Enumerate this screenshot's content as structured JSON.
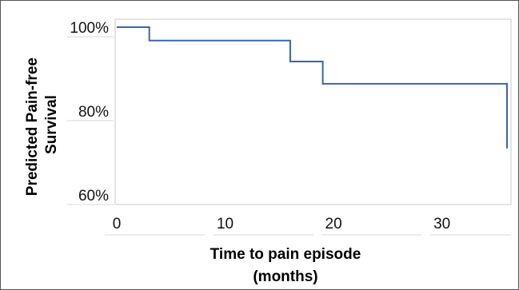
{
  "chart_data": {
    "type": "line",
    "step": true,
    "title": "",
    "xlabel_lines": [
      "Time to pain episode",
      "(months)"
    ],
    "ylabel_lines": [
      "Predicted Pain-free",
      "Survival"
    ],
    "xlim": [
      0,
      36
    ],
    "ylim": [
      0.6,
      1.0
    ],
    "x_ticks": [
      0,
      10,
      20,
      30
    ],
    "x_tick_labels": [
      "0",
      "10",
      "20",
      "30"
    ],
    "y_ticks": [
      0.6,
      0.8,
      1.0
    ],
    "y_tick_labels": [
      "60%",
      "80%",
      "100%"
    ],
    "grid": false,
    "legend": "none",
    "series": [
      {
        "color": "#3a64b4",
        "points": [
          {
            "x": 0,
            "y": 1.0
          },
          {
            "x": 3,
            "y": 1.0
          },
          {
            "x": 3,
            "y": 0.968
          },
          {
            "x": 16,
            "y": 0.968
          },
          {
            "x": 16,
            "y": 0.918
          },
          {
            "x": 19,
            "y": 0.918
          },
          {
            "x": 19,
            "y": 0.865
          },
          {
            "x": 36,
            "y": 0.865
          },
          {
            "x": 36,
            "y": 0.711
          }
        ]
      }
    ]
  }
}
